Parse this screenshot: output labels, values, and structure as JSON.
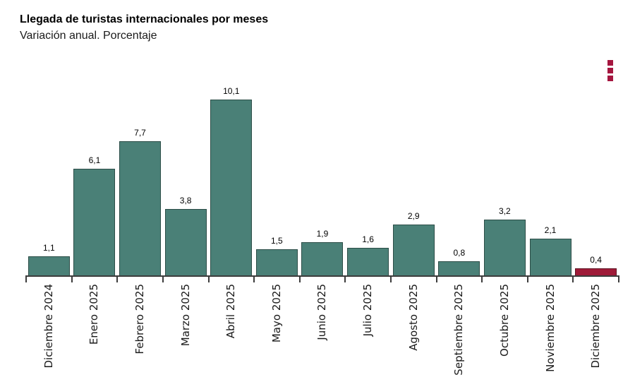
{
  "header": {
    "title": "Llegada de turistas internacionales por meses",
    "subtitle": "Variación anual. Porcentaje"
  },
  "menu": {
    "icon": "kebab-menu-icon"
  },
  "colors": {
    "bar_default": "#4a8077",
    "bar_highlight": "#9e1b38",
    "menu_icon": "#a5163f",
    "axis": "#3c3c3c",
    "text": "#000000"
  },
  "chart_data": {
    "type": "bar",
    "title": "Llegada de turistas internacionales por meses",
    "subtitle": "Variación anual. Porcentaje",
    "categories": [
      "Diciembre 2024",
      "Enero 2025",
      "Febrero 2025",
      "Marzo 2025",
      "Abril 2025",
      "Mayo 2025",
      "Junio 2025",
      "Julio 2025",
      "Agosto 2025",
      "Septiembre 2025",
      "Octubre 2025",
      "Noviembre 2025",
      "Diciembre 2025"
    ],
    "values": [
      1.1,
      6.1,
      7.7,
      3.8,
      10.1,
      1.5,
      1.9,
      1.6,
      2.9,
      0.8,
      3.2,
      2.1,
      0.4
    ],
    "value_labels": [
      "1,1",
      "6,1",
      "7,7",
      "3,8",
      "10,1",
      "1,5",
      "1,9",
      "1,6",
      "2,9",
      "0,8",
      "3,2",
      "2,1",
      "0,4"
    ],
    "highlight_index": 12,
    "xlabel": "",
    "ylabel": "",
    "ylim": [
      0,
      10.6
    ],
    "grid": false,
    "legend": false,
    "x_tick_rotation": 90,
    "value_labels_position": "above-bar"
  }
}
